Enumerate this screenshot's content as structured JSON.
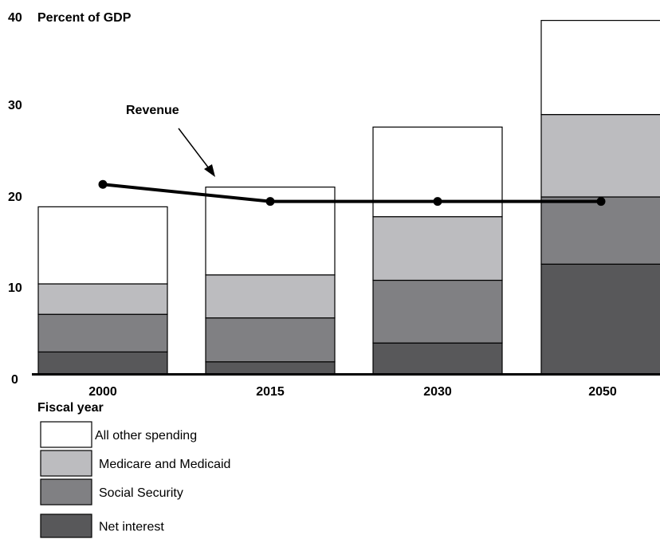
{
  "chart_data": {
    "type": "bar",
    "stacked": true,
    "ylabel": "Percent of GDP",
    "xlabel": "Fiscal year",
    "ylim": [
      0,
      40
    ],
    "yticks": [
      0,
      10,
      20,
      30,
      40
    ],
    "grid": false,
    "legend_position": "bottom-left",
    "categories": [
      "2000",
      "2015",
      "2030",
      "2050"
    ],
    "series": [
      {
        "name": "Net interest",
        "values": [
          2.5,
          1.4,
          3.5,
          12.3
        ],
        "color": "#58585a"
      },
      {
        "name": "Social Security",
        "values": [
          4.2,
          4.9,
          7.0,
          7.5
        ],
        "color": "#808083"
      },
      {
        "name": "Medicare and Medicaid",
        "values": [
          3.4,
          4.8,
          7.1,
          9.2
        ],
        "color": "#bcbcbf"
      },
      {
        "name": "All other spending",
        "values": [
          8.6,
          9.8,
          10.0,
          10.5
        ],
        "color": "#ffffff"
      }
    ],
    "legend_order": [
      "All other spending",
      "Medicare and Medicaid",
      "Social Security",
      "Net interest"
    ],
    "line": {
      "name": "Revenue",
      "values": [
        21.2,
        19.3,
        19.3,
        19.3
      ],
      "color": "#000000"
    },
    "annotations": [
      {
        "text": "Revenue",
        "target": "Revenue line"
      }
    ]
  }
}
